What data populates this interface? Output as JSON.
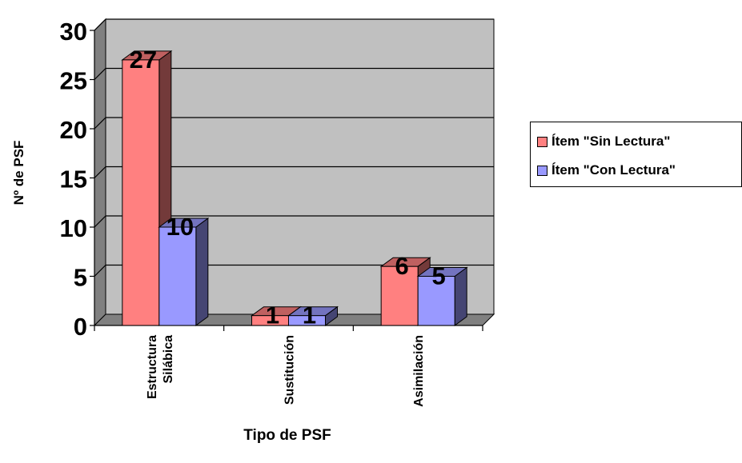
{
  "chart_data": {
    "type": "bar",
    "style": "3d-clustered-column",
    "categories": [
      "Estructura Silábica",
      "Sustitución",
      "Asimilación"
    ],
    "category_label_lines": [
      [
        "Estructura",
        "Silábica"
      ],
      [
        "Sustitución"
      ],
      [
        "Asimilación"
      ]
    ],
    "series": [
      {
        "name": "Ítem \"Sin Lectura\"",
        "values": [
          27,
          1,
          6
        ],
        "color": "#FF8080"
      },
      {
        "name": "Ítem \"Con Lectura\"",
        "values": [
          10,
          1,
          5
        ],
        "color": "#9999FF"
      }
    ],
    "xlabel": "Tipo de PSF",
    "ylabel": "Nº de PSF",
    "ylim": [
      0,
      30
    ],
    "yticks": [
      0,
      5,
      10,
      15,
      20,
      25,
      30
    ],
    "grid": true,
    "data_labels": true,
    "legend_position": "right",
    "plot_background": "#C0C0C0"
  }
}
